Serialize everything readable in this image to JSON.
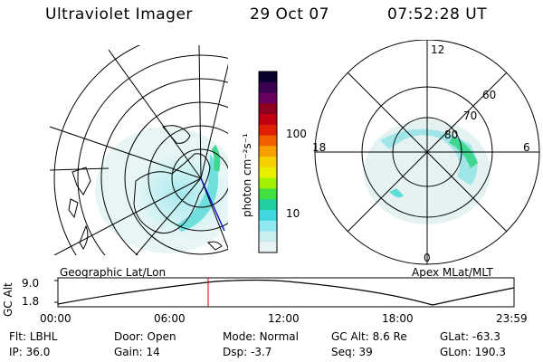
{
  "header": {
    "instrument": "Ultraviolet Imager",
    "date": "29 Oct 07",
    "time": "07:52:28 UT"
  },
  "left_panel": {
    "caption": "Geographic Lat/Lon"
  },
  "right_panel": {
    "caption": "Apex MLat/MLT",
    "mlt_labels": [
      "12",
      "6",
      "0",
      "18"
    ],
    "mlat_labels": [
      "60",
      "70",
      "80"
    ]
  },
  "colorbar": {
    "unit_label": "photon cm⁻²s⁻¹",
    "tick_labels": [
      "100",
      "10"
    ],
    "colors": [
      "#0a0030",
      "#3a0050",
      "#6a0060",
      "#900020",
      "#c00010",
      "#e02000",
      "#f06000",
      "#f8a000",
      "#f8d000",
      "#e8f000",
      "#a0f000",
      "#40e040",
      "#20d0a0",
      "#40d8e0",
      "#90e8f0",
      "#c8eef0",
      "#e8f4f4"
    ]
  },
  "altitude_plot": {
    "axis_label": "GC Alt",
    "y_ticks": [
      "9.0",
      "1.8"
    ],
    "x_ticks": [
      "00:00",
      "06:00",
      "12:00",
      "18:00",
      "23:59"
    ],
    "current_time_marker": "07:52"
  },
  "status": {
    "row1": [
      {
        "label": "Flt:",
        "value": "LBHL"
      },
      {
        "label": "Door:",
        "value": "Open"
      },
      {
        "label": "Mode:",
        "value": "Normal"
      },
      {
        "label": "GC Alt:",
        "value": "8.6 Re"
      },
      {
        "label": "GLat:",
        "value": "-63.3"
      }
    ],
    "row2": [
      {
        "label": "IP:",
        "value": "36.0"
      },
      {
        "label": "Gain:",
        "value": "14"
      },
      {
        "label": "Dsp:",
        "value": "-3.7"
      },
      {
        "label": "Seq:",
        "value": "39"
      },
      {
        "label": "GLon:",
        "value": "190.3"
      }
    ]
  }
}
